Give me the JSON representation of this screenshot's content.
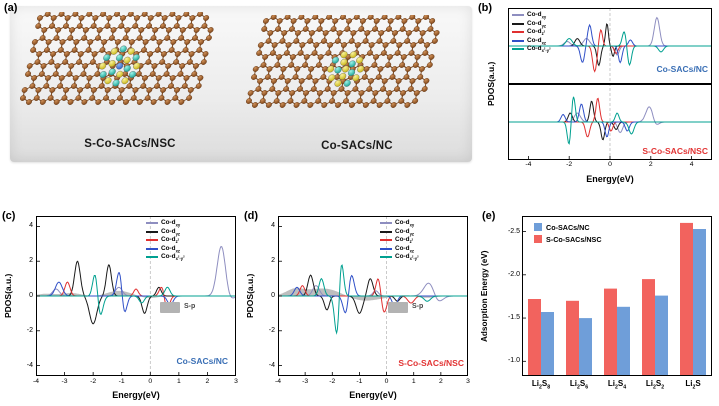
{
  "figure": {
    "panels": {
      "a": {
        "tag": "(a)",
        "left_label": "S-Co-SACs/NSC",
        "right_label": "Co-SACs/NC"
      },
      "b": {
        "tag": "(b)"
      },
      "c": {
        "tag": "(c)"
      },
      "d": {
        "tag": "(d)"
      },
      "e": {
        "tag": "(e)"
      }
    }
  },
  "chart_data": [
    {
      "panel": "b",
      "type": "line",
      "xlabel": "Energy(eV)",
      "ylabel": "PDOS(a.u.)",
      "xlim": [
        -5,
        5
      ],
      "xticks": [
        -4,
        -2,
        0,
        2,
        4
      ],
      "legend_position": "top-left",
      "subpanels": [
        {
          "label": "Co-SACs/NC",
          "label_color": "#3a6fb5",
          "series": [
            {
              "name": "Co-d_{xy}",
              "color": "#8e8ec0",
              "peaks": [
                [
                  2.3,
                  0.95,
                  0.13
                ],
                [
                  -1.15,
                  0.25,
                  0.15
                ],
                [
                  0.35,
                  -0.3,
                  0.1
                ],
                [
                  -2.1,
                  0.15,
                  0.15
                ]
              ]
            },
            {
              "name": "Co-d_{yz}",
              "color": "#1a1a1a",
              "peaks": [
                [
                  -0.15,
                  0.75,
                  0.07
                ],
                [
                  -0.55,
                  -0.65,
                  0.09
                ],
                [
                  0.15,
                  -0.35,
                  0.07
                ],
                [
                  -1.6,
                  0.25,
                  0.12
                ]
              ]
            },
            {
              "name": "Co-d_{z^2}",
              "color": "#e03030",
              "peaks": [
                [
                  -0.45,
                  0.55,
                  0.08
                ],
                [
                  -0.75,
                  -0.85,
                  0.1
                ],
                [
                  0.3,
                  -0.25,
                  0.09
                ]
              ]
            },
            {
              "name": "Co-d_{xz}",
              "color": "#3050c8",
              "peaks": [
                [
                  -1.0,
                  0.7,
                  0.1
                ],
                [
                  -1.35,
                  -0.55,
                  0.1
                ],
                [
                  0.5,
                  -0.55,
                  0.09
                ],
                [
                  1.0,
                  0.2,
                  0.1
                ]
              ]
            },
            {
              "name": "Co-d_{x^2-y^2}",
              "color": "#00a090",
              "peaks": [
                [
                  0.7,
                  0.5,
                  0.1
                ],
                [
                  0.95,
                  -0.65,
                  0.1
                ],
                [
                  -2.0,
                  0.25,
                  0.15
                ],
                [
                  2.5,
                  -0.2,
                  0.12
                ]
              ]
            }
          ]
        },
        {
          "label": "S-Co-SACs/NSC",
          "label_color": "#e23434",
          "series": [
            {
              "name": "Co-d_{xy}",
              "color": "#8e8ec0",
              "peaks": [
                [
                  1.95,
                  0.55,
                  0.18
                ],
                [
                  -1.6,
                  0.3,
                  0.15
                ],
                [
                  0.5,
                  -0.35,
                  0.12
                ],
                [
                  2.2,
                  -0.2,
                  0.15
                ]
              ]
            },
            {
              "name": "Co-d_{yz}",
              "color": "#1a1a1a",
              "peaks": [
                [
                  -0.9,
                  0.7,
                  0.09
                ],
                [
                  -0.35,
                  -0.6,
                  0.09
                ],
                [
                  -1.95,
                  0.3,
                  0.1
                ],
                [
                  0.3,
                  -0.25,
                  0.1
                ]
              ]
            },
            {
              "name": "Co-d_{z^2}",
              "color": "#e03030",
              "peaks": [
                [
                  -0.6,
                  0.8,
                  0.09
                ],
                [
                  -1.1,
                  -0.5,
                  0.1
                ],
                [
                  0.05,
                  -0.3,
                  0.09
                ]
              ]
            },
            {
              "name": "Co-d_{xz}",
              "color": "#3050c8",
              "peaks": [
                [
                  -1.4,
                  0.6,
                  0.1
                ],
                [
                  -0.15,
                  -0.5,
                  0.09
                ],
                [
                  0.85,
                  -0.3,
                  0.1
                ],
                [
                  -2.3,
                  0.25,
                  0.1
                ]
              ]
            },
            {
              "name": "Co-d_{x^2-y^2}",
              "color": "#00a090",
              "peaks": [
                [
                  -1.8,
                  0.9,
                  0.09
                ],
                [
                  -2.0,
                  -0.8,
                  0.09
                ],
                [
                  0.35,
                  0.3,
                  0.09
                ],
                [
                  1.05,
                  -0.4,
                  0.12
                ]
              ]
            }
          ]
        }
      ]
    },
    {
      "panel": "c",
      "type": "line",
      "label": "Co-SACs/NC",
      "label_color": "#3a6fb5",
      "xlabel": "Energy(eV)",
      "ylabel": "PDOS(a.u.)",
      "xlim": [
        -4,
        3
      ],
      "xticks": [
        -4,
        -3,
        -2,
        -1,
        0,
        1,
        2,
        3
      ],
      "ylim": [
        -4.6,
        4.6
      ],
      "yticks": [
        -4,
        -2,
        0,
        2,
        4
      ],
      "fill_series": {
        "name": "S-p",
        "color": "#b3b3b3",
        "peaks": [
          [
            -2.6,
            0.6,
            0.7
          ],
          [
            -1.2,
            0.5,
            0.5
          ],
          [
            -2.1,
            -0.55,
            0.8
          ],
          [
            0.4,
            0.3,
            0.35
          ],
          [
            0.3,
            -0.35,
            0.45
          ],
          [
            -3.6,
            0.3,
            0.3
          ],
          [
            -3.5,
            -0.3,
            0.35
          ]
        ]
      },
      "series": [
        {
          "name": "Co-d_{xy}",
          "color": "#8e8ec0",
          "peaks": [
            [
              2.5,
              3.4,
              0.15
            ],
            [
              2.62,
              -0.7,
              0.18
            ],
            [
              -1.1,
              0.5,
              0.12
            ],
            [
              -3.3,
              0.4,
              0.12
            ]
          ]
        },
        {
          "name": "Co-d_{yz}",
          "color": "#1a1a1a",
          "peaks": [
            [
              -2.55,
              2.0,
              0.1
            ],
            [
              -1.45,
              1.8,
              0.09
            ],
            [
              -2.0,
              -1.6,
              0.13
            ],
            [
              -0.2,
              -1.0,
              0.09
            ],
            [
              0.3,
              0.5,
              0.08
            ]
          ]
        },
        {
          "name": "Co-d_{z^2}",
          "color": "#e03030",
          "peaks": [
            [
              0.45,
              1.0,
              0.1
            ],
            [
              0.55,
              -1.2,
              0.1
            ],
            [
              -2.9,
              0.8,
              0.09
            ],
            [
              -0.5,
              0.4,
              0.08
            ]
          ]
        },
        {
          "name": "Co-d_{xz}",
          "color": "#3050c8",
          "peaks": [
            [
              -1.05,
              2.2,
              0.1
            ],
            [
              -0.95,
              -1.8,
              0.1
            ],
            [
              -3.2,
              0.8,
              0.12
            ],
            [
              0.7,
              -0.5,
              0.1
            ]
          ]
        },
        {
          "name": "Co-d_{x^2-y^2}",
          "color": "#00a090",
          "peaks": [
            [
              -1.9,
              4.0,
              0.1
            ],
            [
              -1.85,
              -3.3,
              0.12
            ],
            [
              0.6,
              0.5,
              0.09
            ],
            [
              -0.3,
              -0.4,
              0.09
            ]
          ]
        }
      ]
    },
    {
      "panel": "d",
      "type": "line",
      "label": "S-Co-SACs/NSC",
      "label_color": "#e23434",
      "xlabel": "Energy(eV)",
      "ylabel": "PDOS(a.u.)",
      "xlim": [
        -4,
        3
      ],
      "xticks": [
        -4,
        -3,
        -2,
        -1,
        0,
        1,
        2,
        3
      ],
      "ylim": [
        -4.6,
        4.6
      ],
      "yticks": [
        -4,
        -2,
        0,
        2,
        4
      ],
      "fill_series": {
        "name": "S-p",
        "color": "#b3b3b3",
        "peaks": [
          [
            -2.1,
            0.55,
            0.8
          ],
          [
            -1.1,
            -0.45,
            0.7
          ],
          [
            0.9,
            0.3,
            0.4
          ],
          [
            1.1,
            -0.3,
            0.45
          ],
          [
            -3.4,
            0.3,
            0.3
          ]
        ]
      },
      "series": [
        {
          "name": "Co-d_{xy}",
          "color": "#8e8ec0",
          "peaks": [
            [
              1.6,
              0.9,
              0.2
            ],
            [
              1.85,
              -0.55,
              0.18
            ],
            [
              -2.6,
              0.6,
              0.12
            ],
            [
              -0.4,
              0.3,
              0.1
            ]
          ]
        },
        {
          "name": "Co-d_{yz}",
          "color": "#1a1a1a",
          "peaks": [
            [
              -2.8,
              1.2,
              0.1
            ],
            [
              -0.6,
              1.0,
              0.1
            ],
            [
              -1.0,
              -1.0,
              0.12
            ],
            [
              -2.2,
              -0.8,
              0.09
            ],
            [
              0.4,
              -0.3,
              0.09
            ]
          ]
        },
        {
          "name": "Co-d_{z^2}",
          "color": "#e03030",
          "peaks": [
            [
              -0.3,
              1.1,
              0.09
            ],
            [
              -0.1,
              -1.0,
              0.1
            ],
            [
              0.9,
              -0.4,
              0.12
            ],
            [
              -3.1,
              0.6,
              0.09
            ]
          ]
        },
        {
          "name": "Co-d_{xz}",
          "color": "#3050c8",
          "peaks": [
            [
              -1.3,
              1.3,
              0.1
            ],
            [
              -1.5,
              -1.1,
              0.1
            ],
            [
              0.3,
              -0.6,
              0.09
            ],
            [
              -3.3,
              0.5,
              0.1
            ]
          ]
        },
        {
          "name": "Co-d_{x^2-y^2}",
          "color": "#00a090",
          "peaks": [
            [
              -1.7,
              4.1,
              0.09
            ],
            [
              -1.78,
              -4.0,
              0.1
            ],
            [
              -2.4,
              1.0,
              0.09
            ],
            [
              1.5,
              -0.3,
              0.12
            ]
          ]
        }
      ]
    },
    {
      "panel": "e",
      "type": "bar",
      "ylabel": "Adsorption Energy (eV)",
      "categories": [
        "Li_{2}S_{8}",
        "Li_{2}S_{6}",
        "Li_{2}S_{4}",
        "Li_{2}S_{2}",
        "Li_{2}S"
      ],
      "series": [
        {
          "name": "Co-SACs/NC",
          "color": "#6f9ed9",
          "values": [
            -1.57,
            -1.5,
            -1.63,
            -1.76,
            -2.53
          ]
        },
        {
          "name": "S-Co-SACs/NSC",
          "color": "#f2635e",
          "values": [
            -1.72,
            -1.7,
            -1.84,
            -1.95,
            -2.6
          ]
        }
      ],
      "bar_order": [
        "S-Co-SACs/NSC",
        "Co-SACs/NC"
      ],
      "ylim": [
        -0.83,
        -2.68
      ],
      "yticks": [
        -1.0,
        -1.5,
        -2.0,
        -2.5
      ],
      "legend_position": "top-left"
    }
  ]
}
